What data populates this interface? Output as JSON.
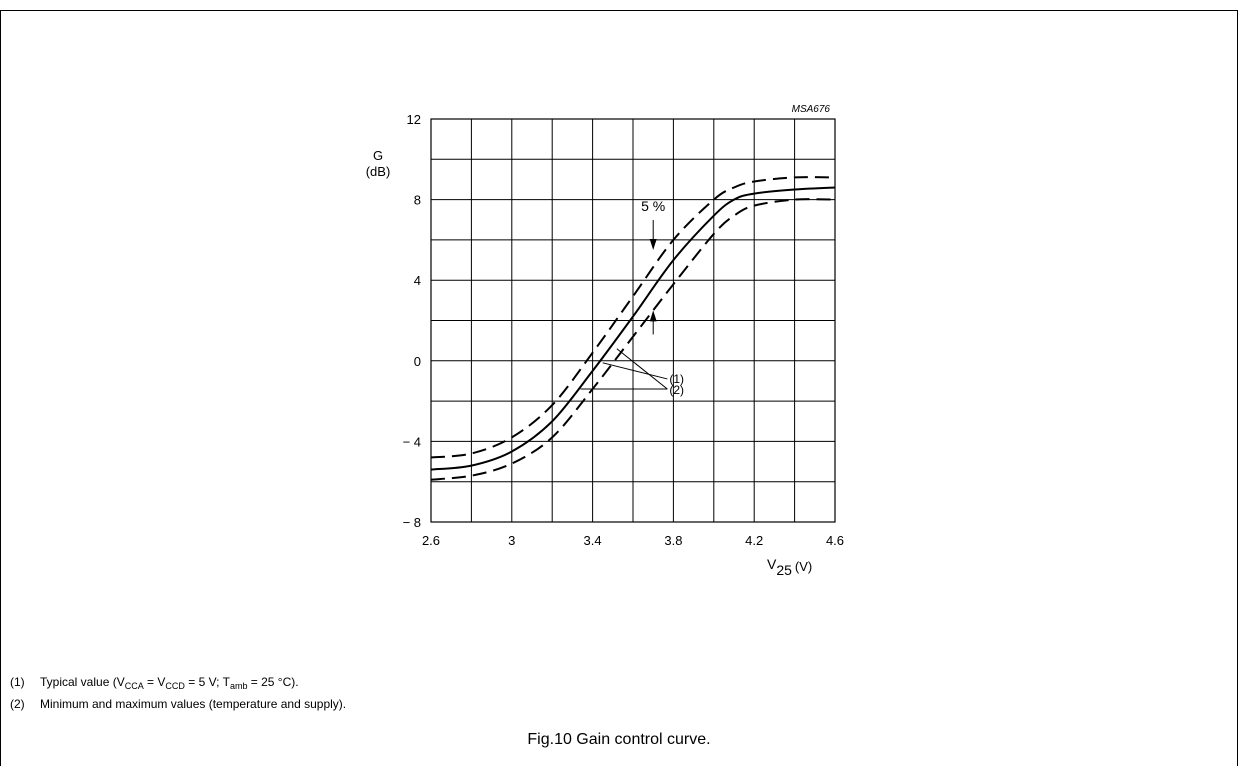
{
  "figure_id": "MSA676",
  "chart_data": {
    "type": "line",
    "ylabel_symbol": "G",
    "ylabel_unit": "(dB)",
    "xlabel_symbol": "V",
    "xlabel_subscript": "25",
    "xlabel_unit": "(V)",
    "xlim": [
      2.6,
      4.6
    ],
    "ylim": [
      -8,
      12
    ],
    "x_ticks": [
      2.6,
      3,
      3.4,
      3.8,
      4.2,
      4.6
    ],
    "x_tick_labels": [
      "2.6",
      "3",
      "3.4",
      "3.8",
      "4.2",
      "4.6"
    ],
    "y_ticks": [
      -8,
      -4,
      0,
      4,
      8,
      12
    ],
    "y_tick_labels": [
      "− 8",
      "− 4",
      "0",
      "4",
      "8",
      "12"
    ],
    "grid": true,
    "grid_x_step": 0.2,
    "grid_y_step": 2,
    "series": [
      {
        "style": "solid",
        "x": [
          2.6,
          2.8,
          3.0,
          3.2,
          3.4,
          3.6,
          3.8,
          4.0,
          4.1,
          4.2,
          4.4,
          4.6
        ],
        "y": [
          -5.4,
          -5.2,
          -4.5,
          -3.0,
          -0.5,
          2.2,
          5.0,
          7.2,
          8.0,
          8.3,
          8.5,
          8.6
        ]
      },
      {
        "style": "dashed",
        "x": [
          2.6,
          2.8,
          3.0,
          3.2,
          3.4,
          3.6,
          3.8,
          4.0,
          4.1,
          4.2,
          4.4,
          4.6
        ],
        "y": [
          -4.8,
          -4.6,
          -3.8,
          -2.2,
          0.4,
          3.2,
          6.0,
          8.0,
          8.6,
          8.9,
          9.1,
          9.1
        ]
      },
      {
        "style": "dashed",
        "x": [
          2.6,
          2.8,
          3.0,
          3.2,
          3.4,
          3.6,
          3.8,
          4.0,
          4.1,
          4.2,
          4.4,
          4.6
        ],
        "y": [
          -5.9,
          -5.7,
          -5.1,
          -3.8,
          -1.4,
          1.2,
          3.8,
          6.3,
          7.2,
          7.7,
          8.0,
          8.0
        ]
      }
    ],
    "annotations": {
      "tolerance_label": "5 %",
      "tolerance_x": 3.7,
      "tolerance_y_top": 5.5,
      "tolerance_y_bottom": 2.5,
      "label1": "(1)",
      "label2": "(2)"
    }
  },
  "notes": {
    "n1_num": "(1)",
    "n1_a": "Typical value (V",
    "n1_s1": "CCA",
    "n1_b": " = V",
    "n1_s2": "CCD",
    "n1_c": " = 5 V; T",
    "n1_s3": "amb",
    "n1_d": " = 25 °C).",
    "n2_num": "(2)",
    "n2_text": "Minimum and maximum values (temperature and supply)."
  },
  "caption": "Fig.10  Gain control curve."
}
